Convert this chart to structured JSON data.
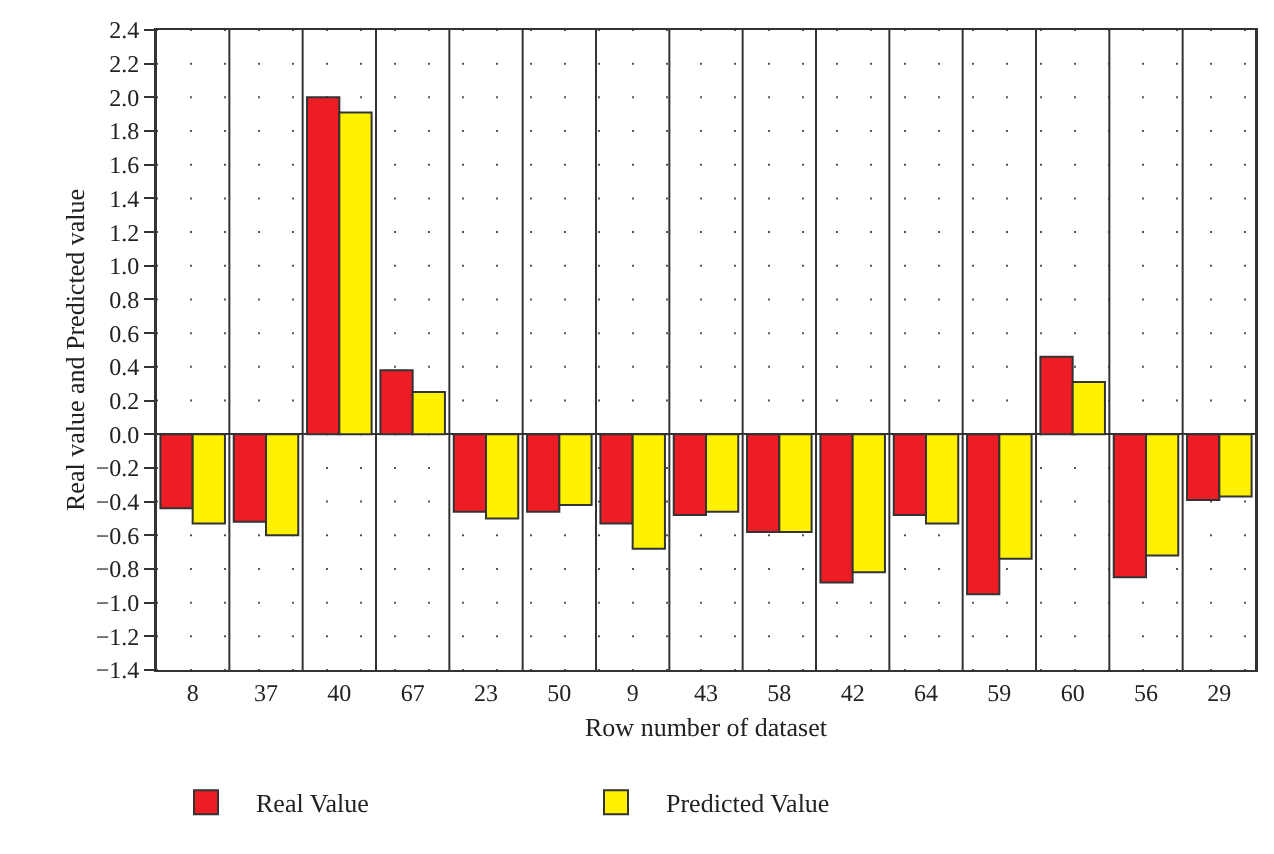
{
  "chart_data": {
    "type": "bar",
    "xlabel": "Row number of dataset",
    "ylabel": "Real value and Predicted value",
    "categories": [
      "8",
      "37",
      "40",
      "67",
      "23",
      "50",
      "9",
      "43",
      "58",
      "42",
      "64",
      "59",
      "60",
      "56",
      "29"
    ],
    "series": [
      {
        "name": "Real Value",
        "color": "#ee1c25",
        "values": [
          -0.44,
          -0.52,
          2.0,
          0.38,
          -0.46,
          -0.46,
          -0.53,
          -0.48,
          -0.58,
          -0.88,
          -0.48,
          -0.95,
          0.46,
          -0.85,
          -0.39
        ]
      },
      {
        "name": "Predicted Value",
        "color": "#fff200",
        "values": [
          -0.53,
          -0.6,
          1.91,
          0.25,
          -0.5,
          -0.42,
          -0.68,
          -0.46,
          -0.58,
          -0.82,
          -0.53,
          -0.74,
          0.31,
          -0.72,
          -0.37
        ]
      }
    ],
    "ylim": [
      -1.4,
      2.4
    ],
    "yticks": [
      -1.4,
      -1.2,
      {
        "value": -1,
        "label": "−1.0"
      },
      -0.8,
      -0.6,
      -0.4,
      -0.2,
      {
        "value": 0,
        "label": "0.0"
      },
      0.2,
      0.4,
      0.6,
      0.8,
      {
        "value": 1,
        "label": "1.0"
      },
      1.2,
      1.4,
      1.6,
      1.8,
      {
        "value": 2,
        "label": "2.0"
      },
      2.2,
      2.4
    ],
    "grid": true,
    "legend": "bottom left"
  }
}
